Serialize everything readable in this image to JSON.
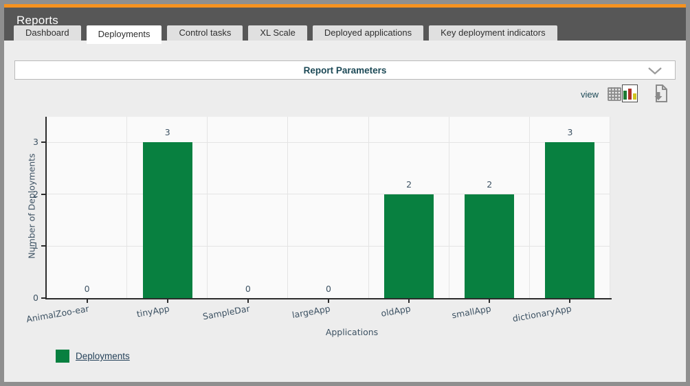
{
  "window": {
    "title": "Reports"
  },
  "tabs": [
    {
      "label": "Dashboard",
      "active": false
    },
    {
      "label": "Deployments",
      "active": true
    },
    {
      "label": "Control tasks",
      "active": false
    },
    {
      "label": "XL Scale",
      "active": false
    },
    {
      "label": "Deployed applications",
      "active": false
    },
    {
      "label": "Key deployment indicators",
      "active": false
    }
  ],
  "report_parameters": {
    "title": "Report Parameters",
    "state": "collapsed",
    "chevron_icon": "chevron-down-icon"
  },
  "toolbar": {
    "view_label": "view",
    "view_options": [
      {
        "icon": "table-view-icon",
        "selected": false
      },
      {
        "icon": "bar-chart-view-icon",
        "selected": true
      }
    ],
    "export_icon": "export-report-icon"
  },
  "colors": {
    "accent_orange": "#f6921f",
    "header_gray": "#575757",
    "bar_green": "#088040",
    "chart_text": "#3d5263",
    "title_teal": "#1c4956"
  },
  "chart_data": {
    "type": "bar",
    "title": "",
    "categories": [
      "AnimalZoo-ear",
      "tinyApp",
      "SampleDar",
      "largeApp",
      "oldApp",
      "smallApp",
      "dictionaryApp"
    ],
    "series": [
      {
        "name": "Deployments",
        "values": [
          0,
          3,
          0,
          0,
          2,
          2,
          3
        ]
      }
    ],
    "data_labels": [
      "0",
      "3",
      "0",
      "0",
      "2",
      "2",
      "3"
    ],
    "xlabel": "Applications",
    "ylabel": "Number of Deployments",
    "yticks": [
      0,
      1,
      2,
      3
    ],
    "ylim": [
      0,
      3.49
    ],
    "grid": true,
    "bar_color": "#088040",
    "legend": {
      "position": "bottom-left",
      "entries": [
        {
          "label": "Deployments",
          "color": "#088040"
        }
      ]
    }
  }
}
